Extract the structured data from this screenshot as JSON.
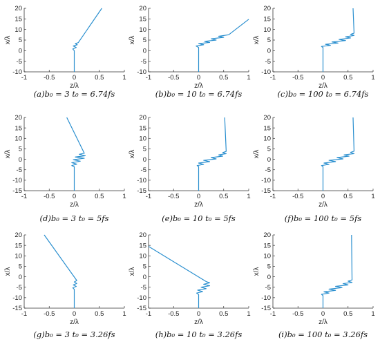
{
  "figure_caption_style": "italic serif",
  "chart_data": [
    {
      "id": "a",
      "type": "line",
      "caption": "(a)b₀ = 3  t₀ = 6.74fs",
      "xlabel": "z/λ",
      "ylabel": "x/λ",
      "xlim": [
        -1,
        1
      ],
      "ylim": [
        -10,
        20
      ],
      "xticks": [
        "-1",
        "-0.5",
        "0",
        "0.5",
        "1"
      ],
      "yticks": [
        "-10",
        "-5",
        "0",
        "5",
        "10",
        "15",
        "20"
      ],
      "series": [
        {
          "color": "#2a8fcf",
          "points": [
            [
              0,
              -10
            ],
            [
              0,
              0
            ],
            [
              -0.03,
              0.8
            ],
            [
              0.04,
              1.5
            ],
            [
              -0.02,
              2.2
            ],
            [
              0.06,
              2.8
            ],
            [
              0.02,
              3.3
            ],
            [
              0.08,
              3.8
            ],
            [
              0.55,
              20
            ]
          ]
        }
      ]
    },
    {
      "id": "b",
      "type": "line",
      "caption": "(b)b₀ = 10  t₀ = 6.74fs",
      "xlabel": "z/λ",
      "ylabel": "x/λ",
      "xlim": [
        -1,
        1
      ],
      "ylim": [
        -10,
        20
      ],
      "xticks": [
        "-1",
        "-0.5",
        "0",
        "0.5",
        "1"
      ],
      "yticks": [
        "-10",
        "-5",
        "0",
        "5",
        "10",
        "15",
        "20"
      ],
      "series": [
        {
          "color": "#2a8fcf",
          "points": [
            [
              0,
              -10
            ],
            [
              0,
              1.5
            ],
            [
              -0.05,
              2.2
            ],
            [
              0.1,
              2.8
            ],
            [
              0.0,
              3.3
            ],
            [
              0.22,
              3.9
            ],
            [
              0.12,
              4.4
            ],
            [
              0.35,
              5.0
            ],
            [
              0.25,
              5.6
            ],
            [
              0.5,
              6.3
            ],
            [
              0.4,
              6.8
            ],
            [
              0.6,
              7.5
            ],
            [
              1.0,
              14.8
            ]
          ]
        }
      ]
    },
    {
      "id": "c",
      "type": "line",
      "caption": "(c)b₀ = 100  t₀ = 6.74fs",
      "xlabel": "z/λ",
      "ylabel": "x/λ",
      "xlim": [
        -1,
        1
      ],
      "ylim": [
        -10,
        20
      ],
      "xticks": [
        "-1",
        "-0.5",
        "0",
        "0.5",
        "1"
      ],
      "yticks": [
        "-10",
        "-5",
        "0",
        "5",
        "10",
        "15",
        "20"
      ],
      "series": [
        {
          "color": "#2a8fcf",
          "points": [
            [
              0,
              -10
            ],
            [
              0,
              1.5
            ],
            [
              -0.03,
              2.0
            ],
            [
              0.15,
              2.5
            ],
            [
              0.05,
              3.0
            ],
            [
              0.3,
              3.6
            ],
            [
              0.18,
              4.1
            ],
            [
              0.45,
              4.8
            ],
            [
              0.32,
              5.3
            ],
            [
              0.55,
              6.0
            ],
            [
              0.45,
              6.5
            ],
            [
              0.62,
              7.2
            ],
            [
              0.55,
              7.7
            ],
            [
              0.62,
              8.3
            ],
            [
              0.6,
              20
            ]
          ]
        }
      ]
    },
    {
      "id": "d",
      "type": "line",
      "caption": "(d)b₀ = 3  t₀ = 5fs",
      "xlabel": "z/λ",
      "ylabel": "x/λ",
      "xlim": [
        -1,
        1
      ],
      "ylim": [
        -15,
        20
      ],
      "xticks": [
        "-1",
        "-0.5",
        "0",
        "0.5",
        "1"
      ],
      "yticks": [
        "-15",
        "-10",
        "-5",
        "0",
        "5",
        "10",
        "15",
        "20"
      ],
      "series": [
        {
          "color": "#2a8fcf",
          "points": [
            [
              0,
              -15
            ],
            [
              0,
              -3.5
            ],
            [
              -0.05,
              -3.0
            ],
            [
              0.05,
              -2.3
            ],
            [
              -0.05,
              -1.6
            ],
            [
              0.12,
              -0.9
            ],
            [
              -0.02,
              -0.2
            ],
            [
              0.2,
              0.5
            ],
            [
              0.02,
              1.1
            ],
            [
              0.22,
              1.7
            ],
            [
              0.1,
              2.4
            ],
            [
              0.2,
              2.9
            ],
            [
              -0.15,
              20
            ]
          ]
        }
      ]
    },
    {
      "id": "e",
      "type": "line",
      "caption": "(e)b₀ = 10  t₀ = 5fs",
      "xlabel": "z/λ",
      "ylabel": "x/λ",
      "xlim": [
        -1,
        1
      ],
      "ylim": [
        -15,
        20
      ],
      "xticks": [
        "-1",
        "-0.5",
        "0",
        "0.5",
        "1"
      ],
      "yticks": [
        "-15",
        "-10",
        "-5",
        "0",
        "5",
        "10",
        "15",
        "20"
      ],
      "series": [
        {
          "color": "#2a8fcf",
          "points": [
            [
              0,
              -15
            ],
            [
              0,
              -3.5
            ],
            [
              -0.03,
              -3.0
            ],
            [
              0.1,
              -2.4
            ],
            [
              0.0,
              -1.8
            ],
            [
              0.22,
              -1.1
            ],
            [
              0.1,
              -0.5
            ],
            [
              0.35,
              0.2
            ],
            [
              0.25,
              0.8
            ],
            [
              0.48,
              1.5
            ],
            [
              0.4,
              2.1
            ],
            [
              0.55,
              2.7
            ],
            [
              0.48,
              3.2
            ],
            [
              0.55,
              3.8
            ],
            [
              0.52,
              20
            ]
          ]
        }
      ]
    },
    {
      "id": "f",
      "type": "line",
      "caption": "(f)b₀ = 100  t₀ = 5fs",
      "xlabel": "z/λ",
      "ylabel": "x/λ",
      "xlim": [
        -1,
        1
      ],
      "ylim": [
        -15,
        20
      ],
      "xticks": [
        "-1",
        "-0.5",
        "0",
        "0.5",
        "1"
      ],
      "yticks": [
        "-15",
        "-10",
        "-5",
        "0",
        "5",
        "10",
        "15",
        "20"
      ],
      "series": [
        {
          "color": "#2a8fcf",
          "points": [
            [
              0,
              -15
            ],
            [
              0,
              -3.5
            ],
            [
              -0.03,
              -3.0
            ],
            [
              0.12,
              -2.4
            ],
            [
              0.02,
              -1.8
            ],
            [
              0.25,
              -1.1
            ],
            [
              0.12,
              -0.5
            ],
            [
              0.4,
              0.2
            ],
            [
              0.28,
              0.8
            ],
            [
              0.52,
              1.5
            ],
            [
              0.42,
              2.1
            ],
            [
              0.62,
              2.7
            ],
            [
              0.55,
              3.3
            ],
            [
              0.62,
              3.9
            ],
            [
              0.6,
              20
            ]
          ]
        }
      ]
    },
    {
      "id": "g",
      "type": "line",
      "caption": "(g)b₀ = 3  t₀ = 3.26fs",
      "xlabel": "z/λ",
      "ylabel": "x/λ",
      "xlim": [
        -1,
        1
      ],
      "ylim": [
        -15,
        20
      ],
      "xticks": [
        "-1",
        "-0.5",
        "0",
        "0.5",
        "1"
      ],
      "yticks": [
        "-15",
        "-10",
        "-5",
        "0",
        "5",
        "10",
        "15",
        "20"
      ],
      "series": [
        {
          "color": "#2a8fcf",
          "points": [
            [
              0,
              -15
            ],
            [
              0,
              -6
            ],
            [
              -0.03,
              -5.3
            ],
            [
              0.04,
              -4.6
            ],
            [
              -0.02,
              -3.9
            ],
            [
              0.05,
              -3.2
            ],
            [
              0.0,
              -2.5
            ],
            [
              0.05,
              -1.8
            ],
            [
              -0.6,
              20
            ]
          ]
        }
      ]
    },
    {
      "id": "h",
      "type": "line",
      "caption": "(h)b₀ = 10  t₀ = 3.26fs",
      "xlabel": "z/λ",
      "ylabel": "x/λ",
      "xlim": [
        -1,
        1
      ],
      "ylim": [
        -15,
        20
      ],
      "xticks": [
        "-1",
        "-0.5",
        "0",
        "0.5",
        "1"
      ],
      "yticks": [
        "-15",
        "-10",
        "-5",
        "0",
        "5",
        "10",
        "15",
        "20"
      ],
      "series": [
        {
          "color": "#2a8fcf",
          "points": [
            [
              0,
              -15
            ],
            [
              0,
              -8.5
            ],
            [
              -0.04,
              -7.8
            ],
            [
              0.08,
              -7.1
            ],
            [
              -0.02,
              -6.4
            ],
            [
              0.15,
              -5.7
            ],
            [
              0.05,
              -5.0
            ],
            [
              0.22,
              -4.3
            ],
            [
              0.1,
              -3.6
            ],
            [
              0.22,
              -2.9
            ],
            [
              0.15,
              -2.3
            ],
            [
              -1.0,
              14.5
            ]
          ]
        }
      ]
    },
    {
      "id": "i",
      "type": "line",
      "caption": "(i)b₀ = 100  t₀ = 3.26fs",
      "xlabel": "z/λ",
      "ylabel": "x/λ",
      "xlim": [
        -1,
        1
      ],
      "ylim": [
        -15,
        20
      ],
      "xticks": [
        "-1",
        "-0.5",
        "0",
        "0.5",
        "1"
      ],
      "yticks": [
        "-15",
        "-10",
        "-5",
        "0",
        "5",
        "10",
        "15",
        "20"
      ],
      "series": [
        {
          "color": "#2a8fcf",
          "points": [
            [
              0,
              -15
            ],
            [
              0,
              -9
            ],
            [
              -0.03,
              -8.4
            ],
            [
              0.12,
              -7.8
            ],
            [
              0.02,
              -7.2
            ],
            [
              0.25,
              -6.5
            ],
            [
              0.12,
              -5.9
            ],
            [
              0.38,
              -5.2
            ],
            [
              0.25,
              -4.6
            ],
            [
              0.5,
              -3.9
            ],
            [
              0.4,
              -3.3
            ],
            [
              0.58,
              -2.7
            ],
            [
              0.5,
              -2.1
            ],
            [
              0.58,
              -1.5
            ],
            [
              0.57,
              20
            ]
          ]
        }
      ]
    }
  ]
}
